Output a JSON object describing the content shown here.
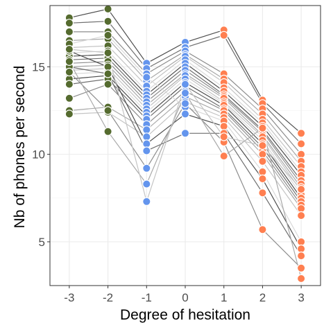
{
  "chart_data": {
    "type": "scatter",
    "xlabel": "Degree of hesitation",
    "ylabel": "Nb of phones per second",
    "x_categories": [
      "-3",
      "-2",
      "-1",
      "0",
      "1",
      "2",
      "3"
    ],
    "y_ticks": [
      5,
      10,
      15
    ],
    "y_tick_labels": [
      "5",
      "10",
      "15"
    ],
    "xlim": [
      -3.5,
      3.5
    ],
    "ylim": [
      2.5,
      18.5
    ],
    "grid": true,
    "colors": {
      "-3": "#556b2f",
      "-2": "#556b2f",
      "-1": "#6495ed",
      "0": "#6495ed",
      "1": "#ff7f50",
      "2": "#ff7f50",
      "3": "#ff7f50"
    },
    "speakers": [
      [
        17.8,
        18.3,
        15.2,
        16.4,
        17.1,
        13.1,
        11.2
      ],
      [
        17.5,
        17.6,
        14.9,
        16.1,
        16.8,
        12.9,
        10.6
      ],
      [
        17.0,
        17.0,
        14.6,
        15.9,
        14.6,
        12.6,
        10.0
      ],
      [
        16.5,
        16.6,
        14.2,
        15.7,
        14.3,
        12.3,
        9.6
      ],
      [
        16.1,
        16.2,
        13.9,
        15.6,
        14.1,
        12.0,
        9.3
      ],
      [
        15.8,
        15.9,
        13.6,
        15.4,
        13.8,
        11.8,
        9.0
      ],
      [
        15.6,
        15.7,
        13.4,
        15.2,
        13.6,
        11.6,
        8.8
      ],
      [
        15.4,
        15.5,
        13.2,
        15.0,
        13.4,
        11.4,
        8.5
      ],
      [
        15.2,
        15.3,
        13.0,
        14.8,
        13.3,
        11.3,
        8.3
      ],
      [
        15.0,
        15.1,
        12.8,
        14.6,
        13.2,
        11.1,
        8.1
      ],
      [
        14.8,
        14.9,
        12.6,
        14.5,
        13.0,
        11.0,
        7.9
      ],
      [
        14.6,
        14.7,
        12.4,
        14.3,
        12.9,
        10.8,
        7.7
      ],
      [
        14.3,
        14.5,
        12.2,
        14.1,
        12.8,
        10.6,
        7.5
      ],
      [
        14.0,
        14.3,
        12.0,
        13.9,
        12.6,
        10.4,
        7.3
      ],
      [
        13.2,
        14.0,
        11.7,
        13.6,
        12.5,
        10.2,
        7.1
      ],
      [
        12.5,
        12.7,
        11.4,
        13.3,
        12.3,
        10.0,
        6.9
      ],
      [
        12.3,
        12.4,
        11.0,
        13.0,
        12.1,
        9.6,
        6.5
      ],
      [
        16.3,
        16.8,
        14.4,
        12.7,
        11.9,
        9.0,
        5.0
      ],
      [
        15.9,
        15.0,
        10.6,
        12.3,
        11.6,
        8.6,
        4.6
      ],
      [
        15.0,
        14.6,
        10.2,
        11.2,
        11.2,
        7.8,
        4.2
      ],
      [
        14.7,
        12.5,
        9.2,
        12.9,
        10.7,
        5.7,
        3.5
      ],
      [
        15.3,
        11.3,
        8.3,
        13.5,
        9.9,
        11.5,
        2.9
      ],
      [
        16.0,
        15.8,
        7.3,
        14.0,
        11.0,
        10.5,
        8.0
      ]
    ]
  }
}
